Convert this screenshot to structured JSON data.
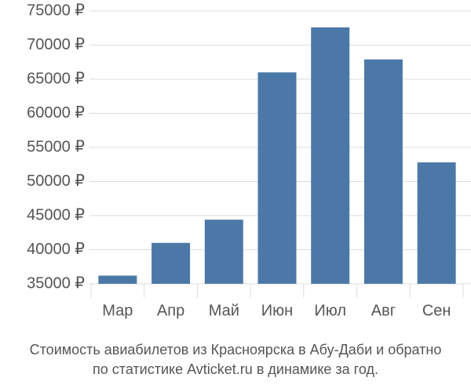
{
  "chart_data": {
    "type": "bar",
    "title": [
      "Стоимость авиабилетов из Красноярска в Абу-Даби и обратно",
      "по статистике Avticket.ru в динамике за год."
    ],
    "categories": [
      "Мар",
      "Апр",
      "Май",
      "Июн",
      "Июл",
      "Авг",
      "Сен"
    ],
    "values": [
      36200,
      41000,
      44400,
      66000,
      72600,
      67900,
      52800
    ],
    "color": "#4c78a8",
    "ylim": [
      35000,
      75000
    ],
    "yticks": [
      {
        "value": 35000,
        "label": "35000 ₽"
      },
      {
        "value": 40000,
        "label": "40000 ₽"
      },
      {
        "value": 45000,
        "label": "45000 ₽"
      },
      {
        "value": 50000,
        "label": "50000 ₽"
      },
      {
        "value": 55000,
        "label": "55000 ₽"
      },
      {
        "value": 60000,
        "label": "60000 ₽"
      },
      {
        "value": 65000,
        "label": "65000 ₽"
      },
      {
        "value": 70000,
        "label": "70000 ₽"
      },
      {
        "value": 75000,
        "label": "75000 ₽"
      }
    ],
    "grid": true
  }
}
